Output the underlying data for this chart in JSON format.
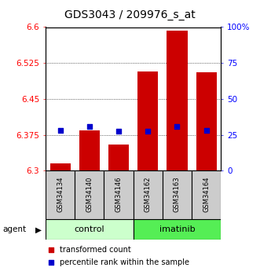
{
  "title": "GDS3043 / 209976_s_at",
  "samples": [
    "GSM34134",
    "GSM34140",
    "GSM34146",
    "GSM34162",
    "GSM34163",
    "GSM34164"
  ],
  "red_values": [
    6.315,
    6.385,
    6.355,
    6.508,
    6.592,
    6.505
  ],
  "blue_values": [
    6.385,
    6.392,
    6.382,
    6.382,
    6.392,
    6.385
  ],
  "ymin": 6.3,
  "ymax": 6.6,
  "yticks_left": [
    6.3,
    6.375,
    6.45,
    6.525,
    6.6
  ],
  "ytick_labels_left": [
    "6.3",
    "6.375",
    "6.45",
    "6.525",
    "6.6"
  ],
  "yticks_right_pct": [
    0,
    25,
    50,
    75,
    100
  ],
  "ytick_labels_right": [
    "0",
    "25",
    "50",
    "75",
    "100%"
  ],
  "bar_color": "#cc0000",
  "dot_color": "#0000cc",
  "control_color": "#ccffcc",
  "imatinib_color": "#55ee55",
  "sample_bg_color": "#cccccc",
  "bar_width": 0.7,
  "legend_red": "transformed count",
  "legend_blue": "percentile rank within the sample",
  "group_label_fontsize": 8,
  "title_fontsize": 10,
  "tick_fontsize": 7.5,
  "sample_fontsize": 6,
  "dot_size": 18,
  "legend_fontsize": 7
}
